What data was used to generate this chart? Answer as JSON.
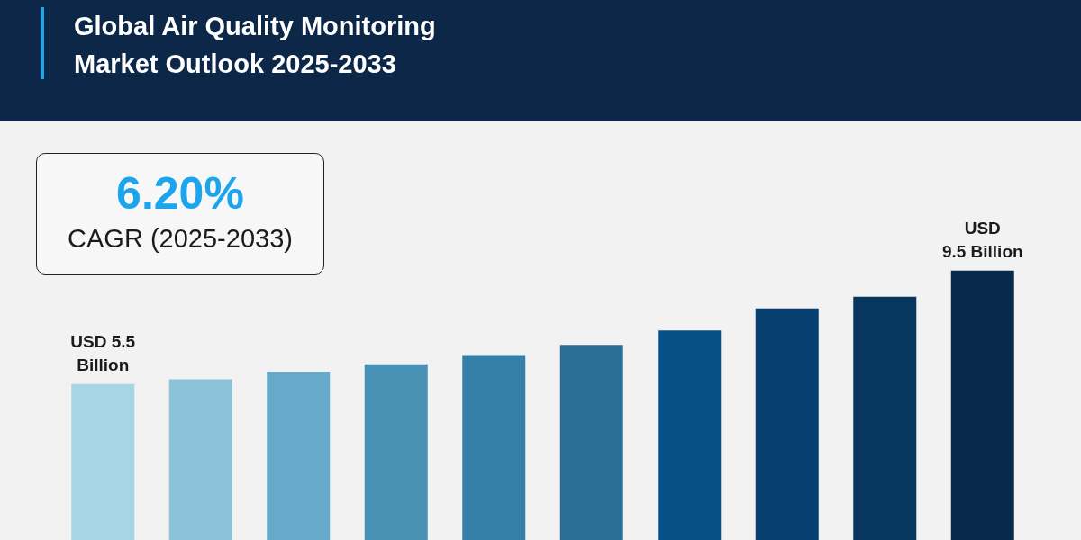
{
  "chart_data": {
    "type": "bar",
    "title": "Global Air Quality Monitoring\nMarket Outlook 2025-2033",
    "annotations": [
      "6.20%",
      "CAGR (2025-2033)"
    ],
    "categories": [
      null,
      null,
      null,
      null,
      null,
      null,
      null,
      null,
      null,
      null
    ],
    "values": [
      5.5,
      5.67,
      5.94,
      6.2,
      6.52,
      6.88,
      7.39,
      8.17,
      8.58,
      9.5
    ],
    "colors": [
      "#a9d6e6",
      "#8cc3da",
      "#66a9c8",
      "#4a91b6",
      "#3580a8",
      "#2b6e96",
      "#084f86",
      "#063f70",
      "#07375f",
      "#082a4a"
    ],
    "value_labels": [
      "USD 5.5\nBillion",
      null,
      null,
      null,
      null,
      null,
      null,
      null,
      null,
      "USD\n9.5 Billion"
    ]
  }
}
